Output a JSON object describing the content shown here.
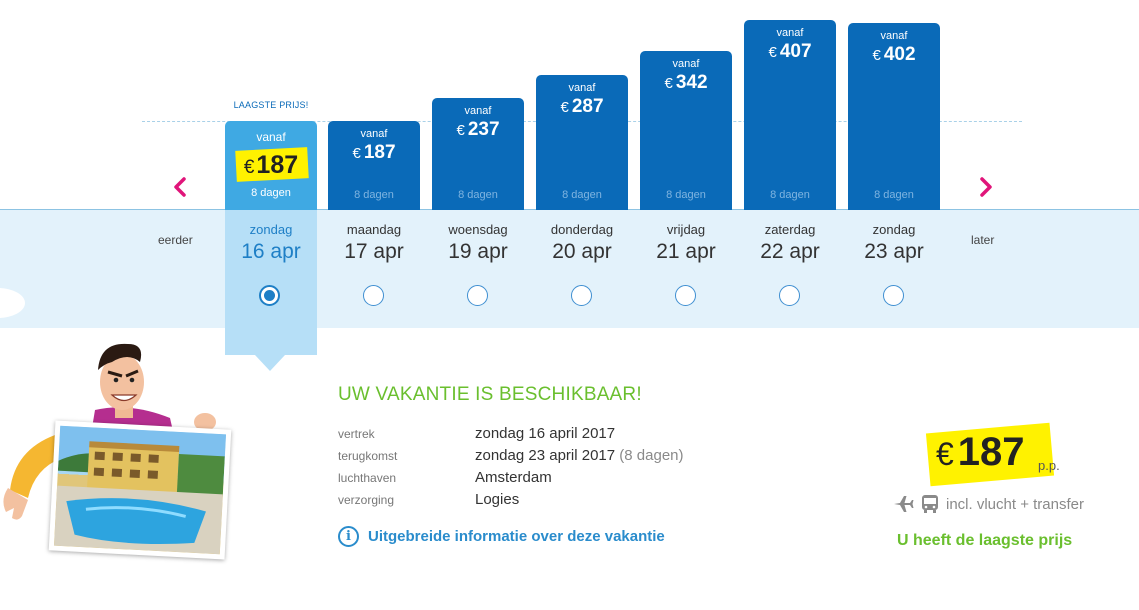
{
  "lowest_label": "LAAGSTE PRIJS!",
  "nav": {
    "prev_label": "eerder",
    "next_label": "later",
    "prev_icon": "chevron-left-icon",
    "next_icon": "chevron-right-icon",
    "arrow_color": "#e0157a"
  },
  "columns": [
    {
      "vanaf": "vanaf",
      "currency": "€",
      "price": "187",
      "dagen": "8 dagen",
      "day": "zondag",
      "date": "16 apr",
      "selected": true
    },
    {
      "vanaf": "vanaf",
      "currency": "€",
      "price": "187",
      "dagen": "8 dagen",
      "day": "maandag",
      "date": "17 apr",
      "selected": false
    },
    {
      "vanaf": "vanaf",
      "currency": "€",
      "price": "237",
      "dagen": "8 dagen",
      "day": "woensdag",
      "date": "19 apr",
      "selected": false
    },
    {
      "vanaf": "vanaf",
      "currency": "€",
      "price": "287",
      "dagen": "8 dagen",
      "day": "donderdag",
      "date": "20 apr",
      "selected": false
    },
    {
      "vanaf": "vanaf",
      "currency": "€",
      "price": "342",
      "dagen": "8 dagen",
      "day": "vrijdag",
      "date": "21 apr",
      "selected": false
    },
    {
      "vanaf": "vanaf",
      "currency": "€",
      "price": "407",
      "dagen": "8 dagen",
      "day": "zaterdag",
      "date": "22 apr",
      "selected": false
    },
    {
      "vanaf": "vanaf",
      "currency": "€",
      "price": "402",
      "dagen": "8 dagen",
      "day": "zondag",
      "date": "23 apr",
      "selected": false
    }
  ],
  "details": {
    "title": "UW VAKANTIE IS BESCHIKBAAR!",
    "rows": [
      {
        "label": "vertrek",
        "value": "zondag 16 april 2017",
        "extra": ""
      },
      {
        "label": "terugkomst",
        "value": "zondag 23 april 2017",
        "extra": "(8 dagen)"
      },
      {
        "label": "luchthaven",
        "value": "Amsterdam",
        "extra": ""
      },
      {
        "label": "verzorging",
        "value": "Logies",
        "extra": ""
      }
    ],
    "info_link": "Uitgebreide informatie over deze vakantie",
    "info_icon": "info-icon"
  },
  "summary": {
    "currency": "€",
    "price": "187",
    "pp": "p.p.",
    "incl": "incl. vlucht + transfer",
    "lowest": "U heeft de laagste prijs",
    "icons": [
      "plane-icon",
      "bus-icon"
    ]
  },
  "colors": {
    "bar": "#0a6ab8",
    "bar_selected": "#3fa9e3",
    "highlight": "#fff200",
    "green": "#6abf2e",
    "link": "#2a8ccc",
    "band": "#e3f2fb"
  }
}
